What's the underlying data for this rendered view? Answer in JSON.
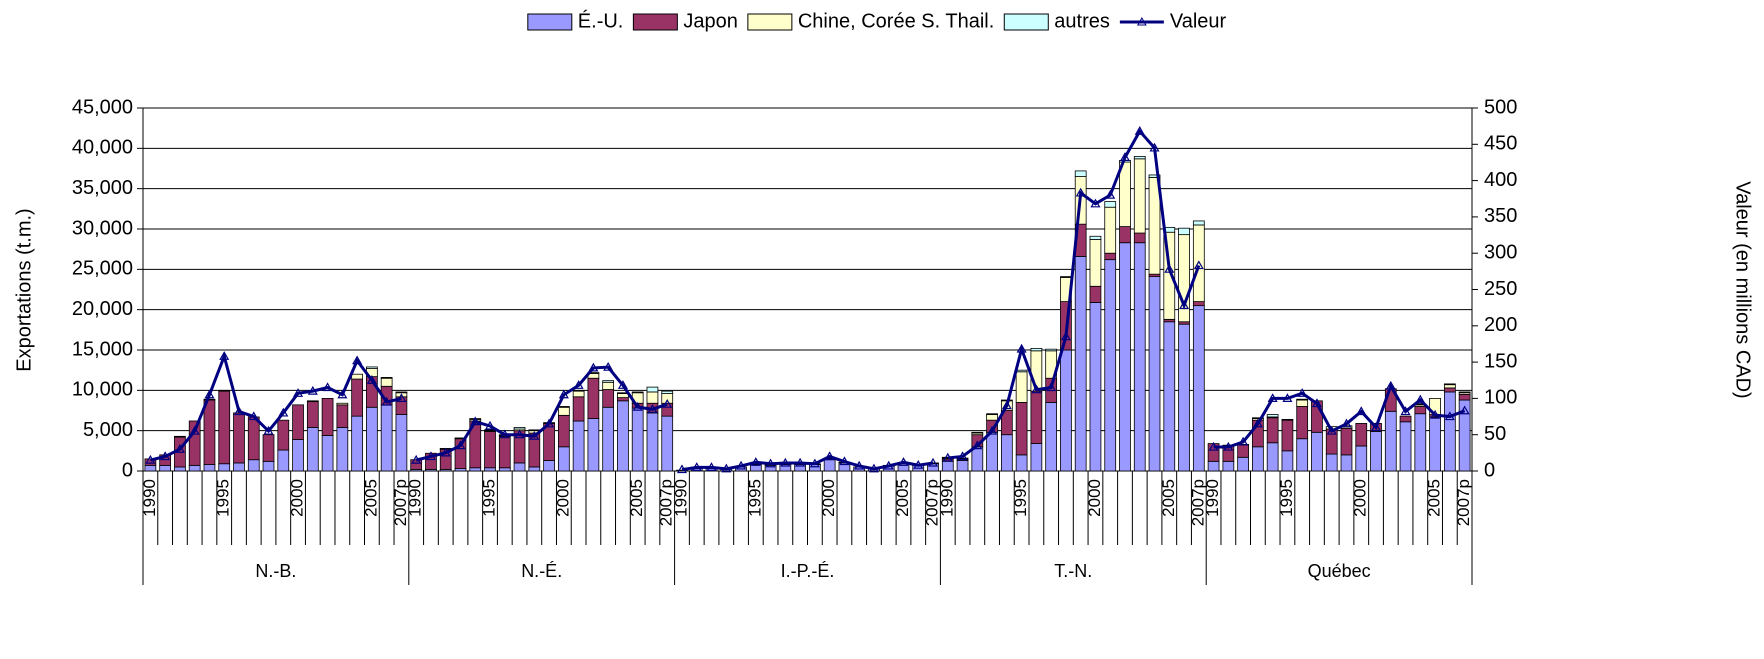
{
  "chart_data": {
    "type": "bar",
    "stacked": true,
    "ylabel": "Exportations (t.m.)",
    "y2label": "Valeur  (en millions CAD)",
    "groups": [
      "N.-B.",
      "N.-É.",
      "I.-P.-É.",
      "T.-N.",
      "Québec"
    ],
    "categories": [
      "1990",
      null,
      null,
      null,
      null,
      "1995",
      null,
      null,
      null,
      null,
      "2000",
      null,
      null,
      null,
      null,
      "2005",
      null,
      "2007p",
      "1990",
      null,
      null,
      null,
      null,
      "1995",
      null,
      null,
      null,
      null,
      "2000",
      null,
      null,
      null,
      null,
      "2005",
      null,
      "2007p",
      "1990",
      null,
      null,
      null,
      null,
      "1995",
      null,
      null,
      null,
      null,
      "2000",
      null,
      null,
      null,
      null,
      "2005",
      null,
      "2007p",
      "1990",
      null,
      null,
      null,
      null,
      "1995",
      null,
      null,
      null,
      null,
      "2000",
      null,
      null,
      null,
      null,
      "2005",
      null,
      "2007p",
      "1990",
      null,
      null,
      null,
      null,
      "1995",
      null,
      null,
      null,
      null,
      "2000",
      null,
      null,
      null,
      null,
      "2005",
      null,
      "2007p"
    ],
    "ylim": [
      0,
      45000
    ],
    "yticks": [
      {
        "value": 0,
        "label": "0"
      },
      {
        "value": 5000,
        "label": "5,000"
      },
      {
        "value": 10000,
        "label": "10,000"
      },
      {
        "value": 15000,
        "label": "15,000"
      },
      {
        "value": 20000,
        "label": "20,000"
      },
      {
        "value": 25000,
        "label": "25,000"
      },
      {
        "value": 30000,
        "label": "30,000"
      },
      {
        "value": 35000,
        "label": "35,000"
      },
      {
        "value": 40000,
        "label": "40,000"
      },
      {
        "value": 45000,
        "label": "45,000"
      }
    ],
    "y2lim": [
      0,
      500
    ],
    "y2ticks": [
      0,
      50,
      100,
      150,
      200,
      250,
      300,
      350,
      400,
      450,
      500
    ],
    "grid": true,
    "legend": "top",
    "series": [
      {
        "name": "É.-U.",
        "color": "#9999ff",
        "values": [
          700,
          700,
          500,
          700,
          800,
          900,
          1000,
          1400,
          1200,
          2600,
          3900,
          5400,
          4400,
          5400,
          6800,
          7900,
          8200,
          7000,
          200,
          200,
          200,
          300,
          400,
          400,
          400,
          1000,
          500,
          1300,
          3000,
          6200,
          6500,
          7900,
          8700,
          7800,
          7200,
          6800,
          100,
          300,
          300,
          200,
          500,
          800,
          700,
          800,
          800,
          800,
          1400,
          1000,
          500,
          300,
          600,
          900,
          700,
          900,
          1200,
          1300,
          3000,
          4800,
          4500,
          2000,
          3400,
          8500,
          15000,
          26600,
          20900,
          26200,
          28300,
          28300,
          24100,
          18500,
          18200,
          20500,
          1200,
          1200,
          1700,
          3000,
          3500,
          2500,
          4000,
          4800,
          2100,
          2000,
          3100,
          4900,
          7400,
          6100,
          7100,
          6700,
          9800,
          8800
        ]
      },
      {
        "name": "Japon",
        "color": "#993366",
        "values": [
          800,
          1300,
          3700,
          5500,
          8000,
          9000,
          6200,
          5300,
          3300,
          3700,
          4300,
          3200,
          4600,
          2800,
          4600,
          3800,
          2300,
          2200,
          1200,
          2000,
          2500,
          3700,
          5800,
          4500,
          3900,
          4000,
          4200,
          4600,
          3900,
          3000,
          5000,
          2200,
          400,
          600,
          1200,
          1600,
          0,
          0,
          0,
          0,
          0,
          0,
          0,
          0,
          0,
          0,
          0,
          0,
          0,
          0,
          0,
          0,
          0,
          0,
          300,
          200,
          1500,
          1500,
          3000,
          6500,
          6500,
          3000,
          6000,
          4000,
          2000,
          800,
          2000,
          1200,
          300,
          300,
          300,
          500,
          2200,
          2000,
          1600,
          3300,
          3100,
          3800,
          4000,
          3900,
          3100,
          3300,
          2800,
          1000,
          2800,
          700,
          900,
          300,
          500,
          700
        ]
      },
      {
        "name": "Chine, Corée S. Thail.",
        "color": "#ffffcc",
        "values": [
          0,
          0,
          0,
          0,
          0,
          0,
          0,
          0,
          0,
          0,
          0,
          100,
          0,
          200,
          600,
          1000,
          1000,
          500,
          0,
          0,
          0,
          0,
          200,
          100,
          100,
          200,
          300,
          0,
          1000,
          700,
          600,
          900,
          500,
          1300,
          1400,
          1200,
          0,
          0,
          0,
          0,
          0,
          0,
          0,
          0,
          0,
          0,
          0,
          0,
          0,
          0,
          0,
          0,
          0,
          0,
          100,
          0,
          200,
          700,
          1200,
          3800,
          5000,
          3400,
          3000,
          5900,
          5800,
          5700,
          8000,
          9200,
          12000,
          10800,
          10800,
          9500,
          0,
          0,
          0,
          200,
          100,
          100,
          800,
          0,
          300,
          300,
          0,
          0,
          0,
          0,
          200,
          2000,
          400,
          200
        ]
      },
      {
        "name": "autres",
        "color": "#ccffff",
        "values": [
          0,
          0,
          100,
          0,
          100,
          100,
          0,
          0,
          0,
          0,
          0,
          0,
          0,
          0,
          0,
          200,
          100,
          100,
          0,
          0,
          100,
          100,
          100,
          100,
          100,
          200,
          100,
          100,
          100,
          100,
          100,
          200,
          100,
          100,
          600,
          300,
          0,
          0,
          0,
          0,
          0,
          100,
          100,
          100,
          100,
          100,
          100,
          100,
          0,
          0,
          100,
          100,
          100,
          100,
          100,
          100,
          100,
          100,
          100,
          200,
          300,
          200,
          100,
          700,
          400,
          700,
          200,
          300,
          300,
          600,
          800,
          500,
          0,
          0,
          0,
          100,
          300,
          0,
          100,
          0,
          0,
          0,
          0,
          0,
          0,
          0,
          100,
          0,
          100,
          100
        ]
      },
      {
        "name": "Valeur",
        "color": "#000080",
        "type": "line",
        "axis": "y2",
        "values": [
          15,
          20,
          30,
          55,
          105,
          158,
          82,
          75,
          55,
          80,
          107,
          110,
          115,
          105,
          152,
          125,
          95,
          100,
          15,
          20,
          25,
          35,
          68,
          62,
          50,
          50,
          48,
          65,
          105,
          118,
          142,
          143,
          118,
          88,
          85,
          92,
          2,
          5,
          5,
          3,
          7,
          12,
          10,
          11,
          11,
          10,
          20,
          13,
          7,
          3,
          7,
          12,
          8,
          11,
          18,
          20,
          35,
          55,
          90,
          168,
          112,
          115,
          185,
          383,
          368,
          380,
          432,
          468,
          445,
          278,
          228,
          283,
          33,
          33,
          40,
          65,
          100,
          100,
          107,
          93,
          55,
          65,
          82,
          60,
          117,
          82,
          98,
          77,
          75,
          83
        ]
      }
    ]
  }
}
